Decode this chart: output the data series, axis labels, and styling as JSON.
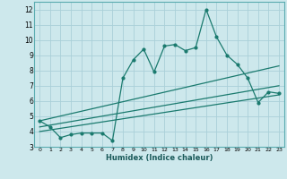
{
  "xlabel": "Humidex (Indice chaleur)",
  "ylabel": "",
  "bg_color": "#cde8ec",
  "grid_color": "#aad0d8",
  "line_color": "#1a7a6e",
  "xlim": [
    -0.5,
    23.5
  ],
  "ylim": [
    3,
    12.5
  ],
  "xticks": [
    0,
    1,
    2,
    3,
    4,
    5,
    6,
    7,
    8,
    9,
    10,
    11,
    12,
    13,
    14,
    15,
    16,
    17,
    18,
    19,
    20,
    21,
    22,
    23
  ],
  "yticks": [
    3,
    4,
    5,
    6,
    7,
    8,
    9,
    10,
    11,
    12
  ],
  "data_x": [
    0,
    1,
    2,
    3,
    4,
    5,
    6,
    7,
    8,
    9,
    10,
    11,
    12,
    13,
    14,
    15,
    16,
    17,
    18,
    19,
    20,
    21,
    22,
    23
  ],
  "data_y": [
    4.7,
    4.3,
    3.6,
    3.8,
    3.9,
    3.9,
    3.9,
    3.4,
    7.5,
    8.7,
    9.4,
    7.9,
    9.6,
    9.7,
    9.3,
    9.5,
    12.0,
    10.2,
    9.0,
    8.4,
    7.5,
    5.9,
    6.6,
    6.5
  ],
  "trend1_x": [
    0,
    23
  ],
  "trend1_y": [
    4.7,
    8.3
  ],
  "trend2_x": [
    0,
    23
  ],
  "trend2_y": [
    4.3,
    7.0
  ],
  "trend3_x": [
    0,
    23
  ],
  "trend3_y": [
    4.0,
    6.4
  ]
}
